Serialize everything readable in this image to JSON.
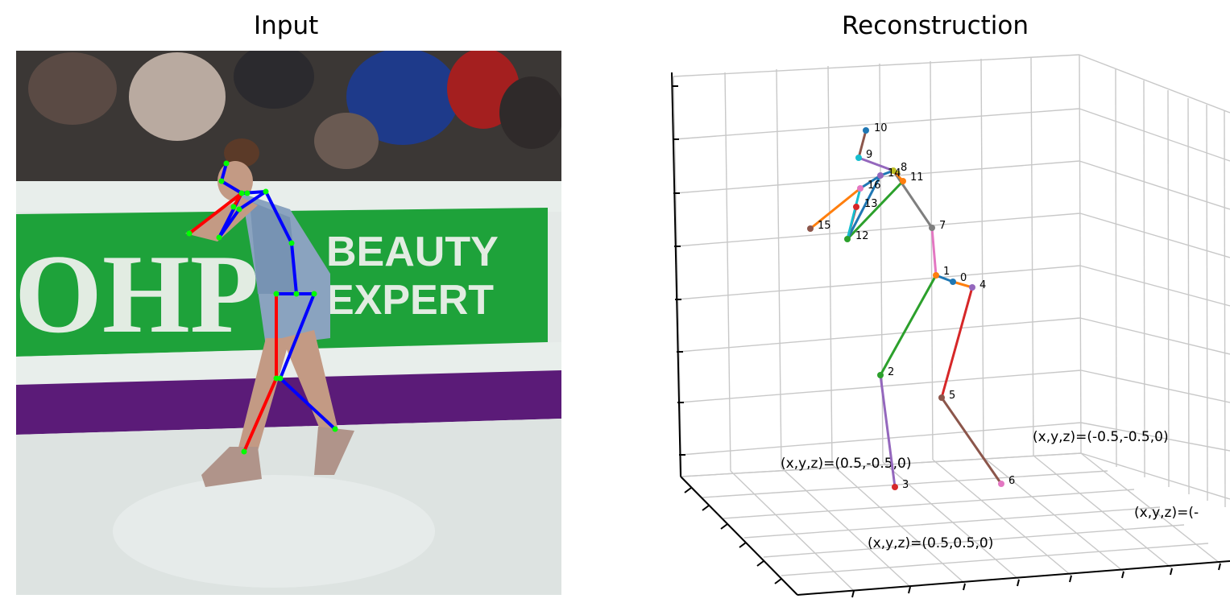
{
  "titles": {
    "input": "Input",
    "reconstruction": "Reconstruction"
  },
  "input_image": {
    "description_colors": {
      "crowd": "#3a3633",
      "board_green": "#1ea23a",
      "board_text": "#dfe9df",
      "purple_band": "#5e1a7a",
      "ice": "#dfe5e3",
      "dress": "#7f9ab8"
    },
    "board_text": "OHP",
    "board_text_2": "BEAUTY",
    "board_text_3": "EXPERT",
    "skeleton_colors": {
      "left": "#ff0000",
      "right": "#0000ff",
      "joint": "#00ff00"
    }
  },
  "reconstruction": {
    "coord_labels": [
      "(x,y,z)=(0.5,-0.5,0)",
      "(x,y,z)=(-0.5,-0.5,0)",
      "(x,y,z)=(0.5,0.5,0)",
      "(x,y,z)=(-"
    ],
    "joint_labels": [
      "0",
      "1",
      "2",
      "3",
      "4",
      "5",
      "6",
      "7",
      "8",
      "9",
      "10",
      "11",
      "12",
      "13",
      "14",
      "15",
      "16"
    ],
    "bone_colors": [
      "#1f77b4",
      "#ff7f0e",
      "#2ca02c",
      "#d62728",
      "#9467bd",
      "#8c564b",
      "#e377c2",
      "#7f7f7f",
      "#bcbd22",
      "#17becf"
    ],
    "grid_color": "#c8c8c8"
  }
}
